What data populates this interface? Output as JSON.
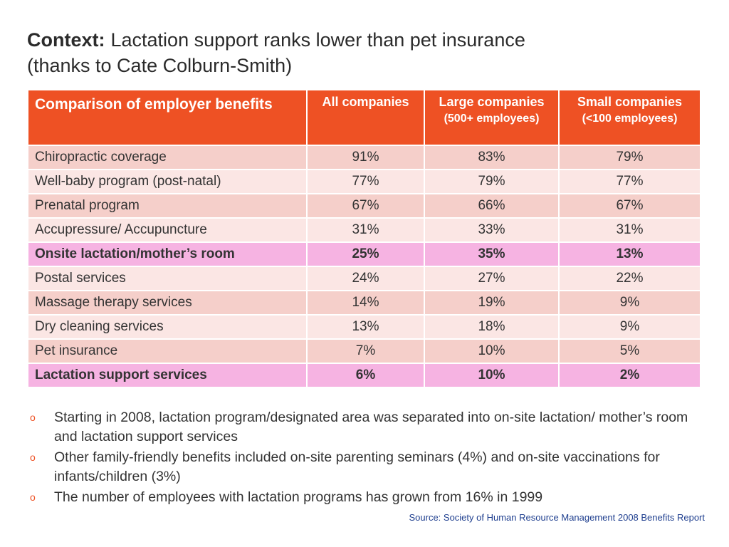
{
  "title": {
    "lead": "Context:",
    "text": "Lactation support ranks lower than pet insurance",
    "line2": "(thanks to Cate Colburn-Smith)"
  },
  "table": {
    "header": {
      "col1": "Comparison of employer benefits",
      "col2": "All companies",
      "col3": "Large companies",
      "col3_sub": "(500+ employees)",
      "col4": "Small companies",
      "col4_sub": "(<100 employees)"
    },
    "rows": [
      {
        "label": "Chiropractic coverage",
        "all": "91%",
        "large": "83%",
        "small": "79%",
        "highlight": false
      },
      {
        "label": "Well-baby program (post-natal)",
        "all": "77%",
        "large": "79%",
        "small": "77%",
        "highlight": false
      },
      {
        "label": "Prenatal program",
        "all": "67%",
        "large": "66%",
        "small": "67%",
        "highlight": false
      },
      {
        "label": "Accupressure/ Accupuncture",
        "all": "31%",
        "large": "33%",
        "small": "31%",
        "highlight": false
      },
      {
        "label": "Onsite lactation/mother’s room",
        "all": "25%",
        "large": "35%",
        "small": "13%",
        "highlight": true
      },
      {
        "label": "Postal services",
        "all": "24%",
        "large": "27%",
        "small": "22%",
        "highlight": false
      },
      {
        "label": "Massage therapy services",
        "all": "14%",
        "large": "19%",
        "small": "9%",
        "highlight": false
      },
      {
        "label": "Dry cleaning services",
        "all": "13%",
        "large": "18%",
        "small": "9%",
        "highlight": false
      },
      {
        "label": "Pet insurance",
        "all": "7%",
        "large": "10%",
        "small": "5%",
        "highlight": false
      },
      {
        "label": "Lactation support services",
        "all": "6%",
        "large": "10%",
        "small": "2%",
        "highlight": true
      }
    ]
  },
  "bullets": {
    "marker": "o",
    "items": [
      "Starting in 2008, lactation program/designated area was separated into on-site lactation/ mother’s room and lactation support services",
      "Other family-friendly benefits included on-site parenting seminars (4%) and on-site vaccinations for infants/children (3%)",
      "The number of employees with lactation programs has grown from 16% in 1999"
    ]
  },
  "source": "Source: Society of Human Resource Management 2008 Benefits Report",
  "colors": {
    "header_bg": "#ee5124",
    "row_odd": "#f5cfca",
    "row_even": "#fbe6e4",
    "row_highlight": "#f6b3e2",
    "bullet_marker": "#ee5124",
    "source_text": "#1f3f8f"
  }
}
